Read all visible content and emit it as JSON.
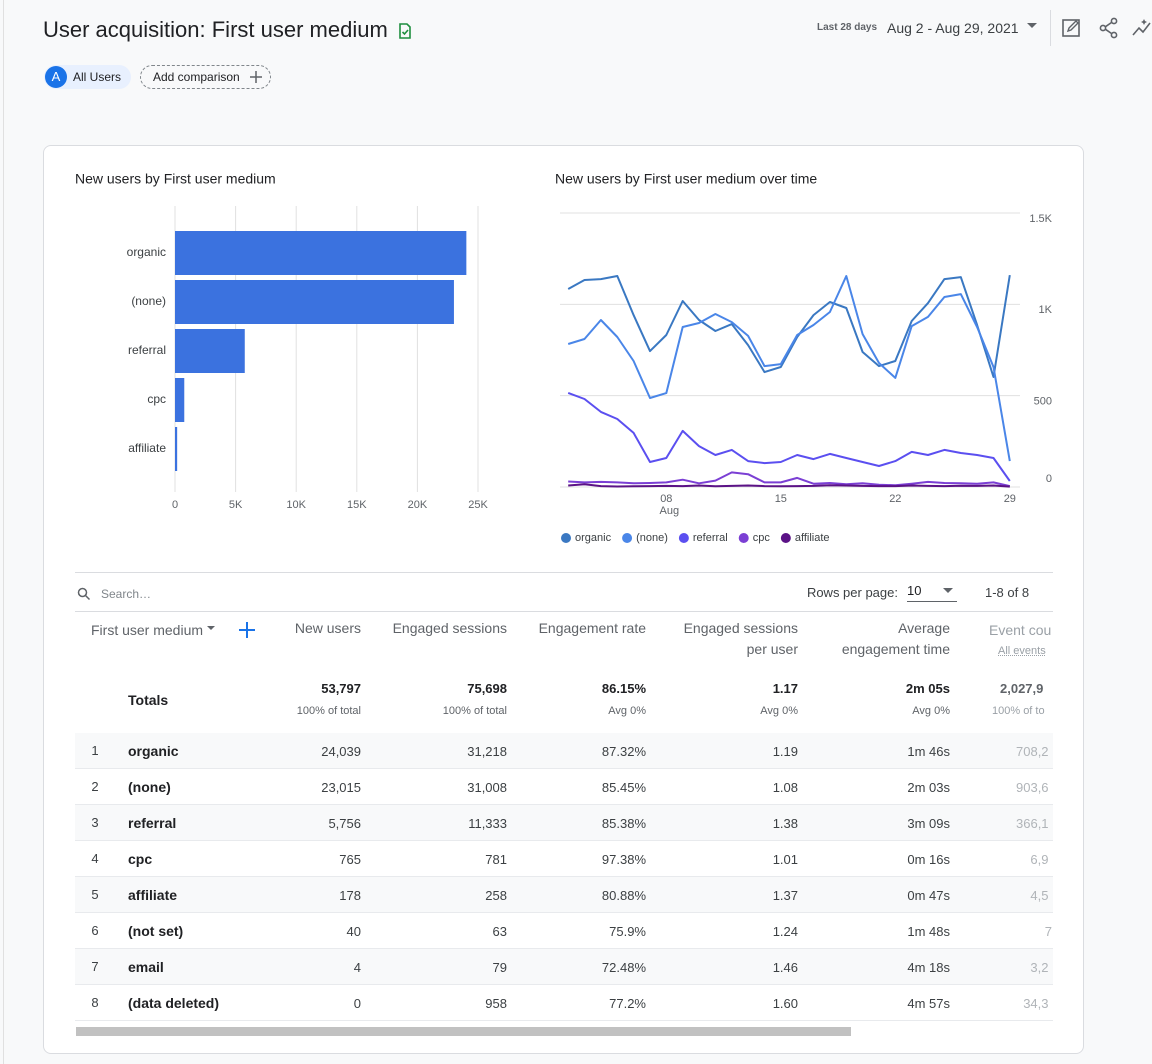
{
  "header": {
    "title": "User acquisition: First user medium",
    "date_label": "Last 28 days",
    "date_range": "Aug 2 - Aug 29, 2021"
  },
  "comparisons": {
    "avatar": "A",
    "segment": "All Users",
    "add": "Add comparison"
  },
  "chart_data": [
    {
      "type": "bar",
      "orientation": "horizontal",
      "title": "New users by First user medium",
      "categories": [
        "organic",
        "(none)",
        "referral",
        "cpc",
        "affiliate"
      ],
      "values": [
        24039,
        23015,
        5756,
        765,
        178
      ],
      "color": "#3b72df",
      "xlim": [
        0,
        25000
      ],
      "xticks": [
        0,
        {
          "value": 5000,
          "label": "5K"
        },
        {
          "value": 10000,
          "label": "10K"
        },
        {
          "value": 15000,
          "label": "15K"
        },
        {
          "value": 20000,
          "label": "20K"
        },
        {
          "value": 25000,
          "label": "25K"
        }
      ],
      "grid": true
    },
    {
      "type": "line",
      "title": "New users by First user medium over time",
      "x": [
        2,
        3,
        4,
        5,
        6,
        7,
        8,
        9,
        10,
        11,
        12,
        13,
        14,
        15,
        16,
        17,
        18,
        19,
        20,
        21,
        22,
        23,
        24,
        25,
        26,
        27,
        28,
        29
      ],
      "xlim": [
        1.5,
        29.5
      ],
      "xticks": [
        {
          "value": 8,
          "label": "08"
        },
        15,
        22,
        29
      ],
      "x_month_label": "Aug",
      "ylim": [
        0,
        1500
      ],
      "yticks": [
        0,
        500,
        {
          "value": 1000,
          "label": "1K"
        },
        {
          "value": 1500,
          "label": "1.5K"
        }
      ],
      "y_axis_side": "right",
      "grid": true,
      "legend": "bottom",
      "series": [
        {
          "name": "organic",
          "color": "#3a78c2",
          "values": [
            1084,
            1133,
            1138,
            1155,
            941,
            744,
            832,
            1018,
            914,
            854,
            892,
            777,
            629,
            657,
            821,
            941,
            1013,
            980,
            739,
            662,
            690,
            909,
            1007,
            1138,
            1149,
            887,
            602,
            1160
          ]
        },
        {
          "name": "(none)",
          "color": "#4a86e8",
          "values": [
            783,
            810,
            914,
            821,
            690,
            487,
            514,
            876,
            898,
            947,
            903,
            827,
            662,
            673,
            832,
            887,
            958,
            1155,
            837,
            679,
            597,
            881,
            931,
            1040,
            1056,
            876,
            657,
            142
          ]
        },
        {
          "name": "referral",
          "color": "#5b4ff0",
          "values": [
            515,
            482,
            411,
            372,
            296,
            137,
            159,
            307,
            224,
            175,
            203,
            142,
            131,
            137,
            175,
            153,
            181,
            159,
            137,
            115,
            142,
            192,
            175,
            203,
            186,
            175,
            159,
            33
          ]
        },
        {
          "name": "cpc",
          "color": "#7b3fd4",
          "values": [
            30,
            25,
            28,
            25,
            20,
            22,
            25,
            40,
            20,
            35,
            80,
            70,
            25,
            25,
            50,
            18,
            22,
            15,
            20,
            12,
            10,
            18,
            28,
            22,
            20,
            18,
            25,
            5
          ]
        },
        {
          "name": "affiliate",
          "color": "#5b1286",
          "values": [
            8,
            15,
            5,
            3,
            4,
            5,
            6,
            5,
            8,
            4,
            6,
            8,
            5,
            4,
            5,
            6,
            10,
            8,
            6,
            5,
            5,
            8,
            6,
            5,
            7,
            6,
            8,
            2
          ]
        }
      ]
    }
  ],
  "table": {
    "search_placeholder": "Search…",
    "rows_per_page_label": "Rows per page:",
    "rows_per_page": "10",
    "pagination": "1-8 of 8",
    "columns": [
      "First user medium",
      "New users",
      "Engaged sessions",
      "Engagement rate",
      "Engaged sessions per user",
      "Average engagement time",
      "Event cou"
    ],
    "event_count_subheader": "All events",
    "totals": {
      "label": "Totals",
      "cells": [
        {
          "value": "53,797",
          "note": "100% of total"
        },
        {
          "value": "75,698",
          "note": "100% of total"
        },
        {
          "value": "86.15%",
          "note": "Avg 0%"
        },
        {
          "value": "1.17",
          "note": "Avg 0%"
        },
        {
          "value": "2m 05s",
          "note": "Avg 0%"
        },
        {
          "value": "2,027,9",
          "note": "100% of to"
        }
      ]
    },
    "rows": [
      [
        "1",
        "organic",
        "24,039",
        "31,218",
        "87.32%",
        "1.19",
        "1m 46s",
        "708,2"
      ],
      [
        "2",
        "(none)",
        "23,015",
        "31,008",
        "85.45%",
        "1.08",
        "2m 03s",
        "903,6"
      ],
      [
        "3",
        "referral",
        "5,756",
        "11,333",
        "85.38%",
        "1.38",
        "3m 09s",
        "366,1"
      ],
      [
        "4",
        "cpc",
        "765",
        "781",
        "97.38%",
        "1.01",
        "0m 16s",
        "6,9"
      ],
      [
        "5",
        "affiliate",
        "178",
        "258",
        "80.88%",
        "1.37",
        "0m 47s",
        "4,5"
      ],
      [
        "6",
        "(not set)",
        "40",
        "63",
        "75.9%",
        "1.24",
        "1m 48s",
        "7"
      ],
      [
        "7",
        "email",
        "4",
        "79",
        "72.48%",
        "1.46",
        "4m 18s",
        "3,2"
      ],
      [
        "8",
        "(data deleted)",
        "0",
        "958",
        "77.2%",
        "1.60",
        "4m 57s",
        "34,3"
      ]
    ]
  }
}
